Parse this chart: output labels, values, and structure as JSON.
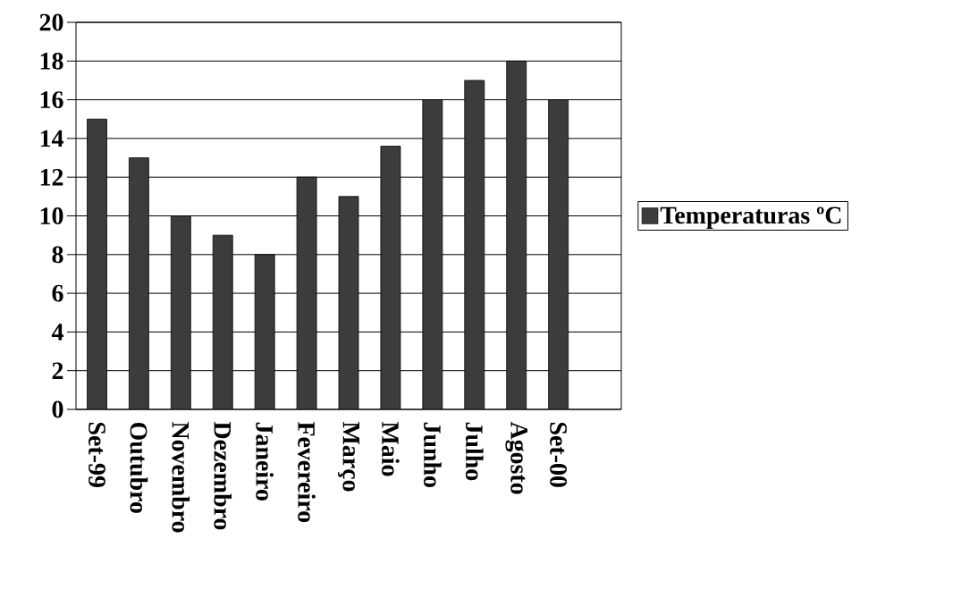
{
  "chart_data": {
    "type": "bar",
    "categories": [
      "Set-99",
      "Outubro",
      "Novembro",
      "Dezembro",
      "Janeiro",
      "Fevereiro",
      "Março",
      "Maio",
      "Junho",
      "Julho",
      "Agosto",
      "Set-00",
      null
    ],
    "series": [
      {
        "name": "Temperaturas ºC",
        "color": "#3c3c3c",
        "values": [
          15,
          13,
          10,
          9,
          8,
          12,
          11,
          13.6,
          16,
          17,
          18,
          16,
          null
        ]
      }
    ],
    "ylim": [
      0,
      20
    ],
    "yticks": [
      0,
      2,
      4,
      6,
      8,
      10,
      12,
      14,
      16,
      18,
      20
    ],
    "grid": "y",
    "legend": "right"
  }
}
